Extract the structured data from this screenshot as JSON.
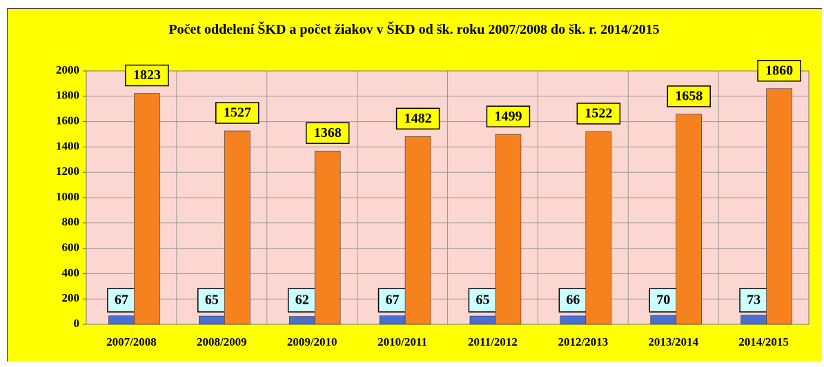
{
  "chart_data": {
    "type": "bar",
    "title": "Počet oddelení ŠKD a počet žiakov v ŠKD od šk. roku 2007/2008 do šk. r. 2014/2015",
    "categories": [
      "2007/2008",
      "2008/2009",
      "2009/2010",
      "2010/2011",
      "2011/2012",
      "2012/2013",
      "2013/2014",
      "2014/2015"
    ],
    "series": [
      {
        "color": "#4a6fd4",
        "values": [
          67,
          65,
          62,
          67,
          65,
          66,
          70,
          73
        ]
      },
      {
        "color": "#f6821f",
        "values": [
          1823,
          1527,
          1368,
          1482,
          1499,
          1522,
          1658,
          1860
        ]
      }
    ],
    "ylim": [
      0,
      2000
    ],
    "yticks": [
      0,
      200,
      400,
      600,
      800,
      1000,
      1200,
      1400,
      1600,
      1800,
      2000
    ],
    "grid": true
  }
}
